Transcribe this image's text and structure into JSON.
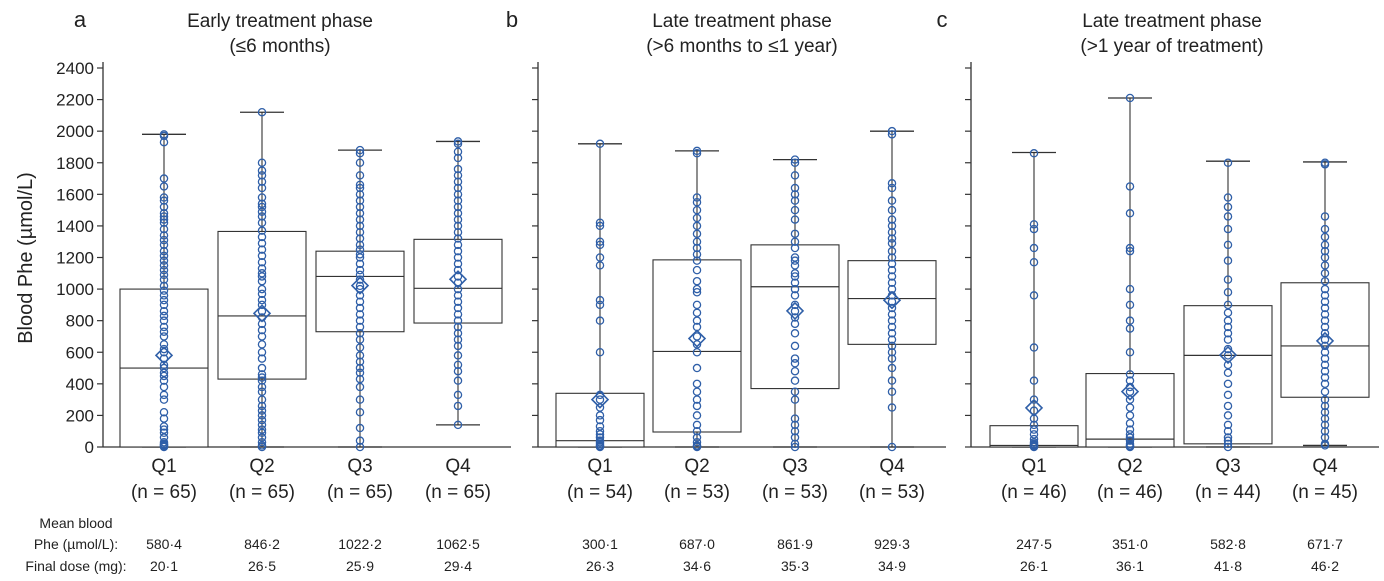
{
  "chart_data": [
    {
      "type": "box",
      "panel_letter": "a",
      "title": "Early treatment phase",
      "subtitle": "(≤6 months)",
      "ylabel": "Blood Phe (µmol/L)",
      "ylim": [
        0,
        2400
      ],
      "yticks": [
        0,
        200,
        400,
        600,
        800,
        1000,
        1200,
        1400,
        1600,
        1800,
        2000,
        2200,
        2400
      ],
      "categories": [
        "Q1",
        "Q2",
        "Q3",
        "Q4"
      ],
      "n_labels": [
        "(n = 65)",
        "(n = 65)",
        "(n = 65)",
        "(n = 65)"
      ],
      "boxes": [
        {
          "min": 0,
          "q1": 0,
          "median": 500,
          "q3": 1000,
          "max": 1980,
          "mean": 580.4
        },
        {
          "min": 0,
          "q1": 430,
          "median": 830,
          "q3": 1365,
          "max": 2120,
          "mean": 846.2
        },
        {
          "min": 0,
          "q1": 730,
          "median": 1080,
          "q3": 1240,
          "max": 1880,
          "mean": 1022.2
        },
        {
          "min": 140,
          "q1": 785,
          "median": 1005,
          "q3": 1315,
          "max": 1935,
          "mean": 1062.5
        }
      ],
      "points": [
        [
          0,
          5,
          10,
          15,
          20,
          30,
          60,
          90,
          110,
          130,
          180,
          220,
          300,
          330,
          380,
          420,
          450,
          470,
          500,
          520,
          560,
          600,
          620,
          650,
          700,
          730,
          760,
          800,
          830,
          860,
          900,
          930,
          960,
          990,
          1020,
          1060,
          1090,
          1120,
          1150,
          1180,
          1210,
          1240,
          1280,
          1310,
          1340,
          1380,
          1420,
          1440,
          1460,
          1480,
          1520,
          1560,
          1580,
          1650,
          1700,
          1930,
          1970,
          1980
        ],
        [
          0,
          10,
          30,
          60,
          90,
          110,
          140,
          170,
          200,
          230,
          260,
          300,
          350,
          380,
          420,
          440,
          460,
          500,
          560,
          600,
          650,
          700,
          740,
          780,
          820,
          860,
          900,
          930,
          970,
          1000,
          1050,
          1080,
          1100,
          1130,
          1170,
          1210,
          1250,
          1290,
          1330,
          1370,
          1420,
          1460,
          1490,
          1520,
          1540,
          1580,
          1640,
          1680,
          1720,
          1750,
          1800,
          2120
        ],
        [
          0,
          40,
          120,
          220,
          300,
          380,
          430,
          470,
          500,
          540,
          580,
          630,
          680,
          720,
          760,
          800,
          840,
          880,
          920,
          960,
          1000,
          1020,
          1060,
          1090,
          1120,
          1160,
          1200,
          1220,
          1250,
          1280,
          1320,
          1360,
          1400,
          1440,
          1480,
          1520,
          1560,
          1600,
          1640,
          1660,
          1720,
          1800,
          1860,
          1880
        ],
        [
          140,
          260,
          330,
          420,
          480,
          520,
          580,
          640,
          680,
          720,
          760,
          800,
          840,
          880,
          920,
          960,
          1000,
          1040,
          1080,
          1120,
          1160,
          1200,
          1240,
          1280,
          1320,
          1360,
          1400,
          1440,
          1480,
          1520,
          1560,
          1600,
          1640,
          1680,
          1720,
          1760,
          1830,
          1870,
          1920,
          1935
        ]
      ],
      "mean_label": "Mean blood",
      "mean_label_line2": "Phe (µmol/L):",
      "dose_label": "Final dose (mg):",
      "mean_values": [
        "580·4",
        "846·2",
        "1022·2",
        "1062·5"
      ],
      "dose_values": [
        "20·1",
        "26·5",
        "25·9",
        "29·4"
      ]
    },
    {
      "type": "box",
      "panel_letter": "b",
      "title": "Late treatment phase",
      "subtitle": "(>6 months to ≤1 year)",
      "ylim": [
        0,
        2400
      ],
      "categories": [
        "Q1",
        "Q2",
        "Q3",
        "Q4"
      ],
      "n_labels": [
        "(n = 54)",
        "(n = 53)",
        "(n = 53)",
        "(n = 53)"
      ],
      "boxes": [
        {
          "min": 0,
          "q1": 0,
          "median": 40,
          "q3": 340,
          "max": 1920,
          "mean": 300.1
        },
        {
          "min": 0,
          "q1": 95,
          "median": 605,
          "q3": 1185,
          "max": 1875,
          "mean": 687.0
        },
        {
          "min": 0,
          "q1": 370,
          "median": 1015,
          "q3": 1280,
          "max": 1820,
          "mean": 861.9
        },
        {
          "min": 0,
          "q1": 650,
          "median": 940,
          "q3": 1180,
          "max": 2000,
          "mean": 929.3
        }
      ],
      "points": [
        [
          0,
          5,
          10,
          20,
          30,
          40,
          60,
          80,
          100,
          130,
          170,
          200,
          250,
          300,
          330,
          600,
          800,
          900,
          930,
          1150,
          1200,
          1280,
          1300,
          1400,
          1420,
          1920
        ],
        [
          0,
          5,
          10,
          30,
          60,
          100,
          140,
          200,
          260,
          300,
          350,
          400,
          500,
          600,
          650,
          700,
          760,
          800,
          850,
          900,
          980,
          1000,
          1050,
          1120,
          1180,
          1220,
          1260,
          1300,
          1350,
          1400,
          1450,
          1500,
          1550,
          1580,
          1860,
          1875
        ],
        [
          0,
          20,
          60,
          100,
          140,
          180,
          300,
          350,
          420,
          480,
          530,
          560,
          640,
          720,
          780,
          820,
          860,
          900,
          960,
          1000,
          1040,
          1080,
          1100,
          1150,
          1180,
          1200,
          1260,
          1300,
          1350,
          1440,
          1500,
          1560,
          1600,
          1640,
          1720,
          1800,
          1820
        ],
        [
          0,
          250,
          350,
          420,
          500,
          560,
          600,
          640,
          680,
          720,
          760,
          800,
          840,
          880,
          920,
          960,
          1000,
          1040,
          1080,
          1120,
          1160,
          1200,
          1240,
          1290,
          1320,
          1360,
          1400,
          1440,
          1500,
          1560,
          1640,
          1670,
          1980,
          2000
        ]
      ],
      "mean_values": [
        "300·1",
        "687·0",
        "861·9",
        "929·3"
      ],
      "dose_values": [
        "26·3",
        "34·6",
        "35·3",
        "34·9"
      ]
    },
    {
      "type": "box",
      "panel_letter": "c",
      "title": "Late treatment phase",
      "subtitle": "(>1 year of treatment)",
      "ylim": [
        0,
        2400
      ],
      "categories": [
        "Q1",
        "Q2",
        "Q3",
        "Q4"
      ],
      "n_labels": [
        "(n = 46)",
        "(n = 46)",
        "(n = 44)",
        "(n = 45)"
      ],
      "boxes": [
        {
          "min": 0,
          "q1": 0,
          "median": 10,
          "q3": 135,
          "max": 1865,
          "mean": 247.5
        },
        {
          "min": 0,
          "q1": 0,
          "median": 50,
          "q3": 465,
          "max": 2210,
          "mean": 351.0
        },
        {
          "min": 0,
          "q1": 20,
          "median": 580,
          "q3": 895,
          "max": 1810,
          "mean": 582.8
        },
        {
          "min": 10,
          "q1": 315,
          "median": 640,
          "q3": 1040,
          "max": 1805,
          "mean": 671.7
        }
      ],
      "points": [
        [
          0,
          5,
          10,
          15,
          20,
          30,
          50,
          80,
          110,
          140,
          180,
          230,
          300,
          420,
          630,
          960,
          1170,
          1260,
          1380,
          1410,
          1860
        ],
        [
          0,
          5,
          10,
          20,
          40,
          60,
          80,
          110,
          150,
          200,
          250,
          300,
          350,
          380,
          420,
          460,
          600,
          750,
          800,
          900,
          1000,
          1240,
          1260,
          1480,
          1650,
          2210
        ],
        [
          0,
          20,
          40,
          60,
          100,
          140,
          200,
          260,
          330,
          400,
          470,
          520,
          580,
          620,
          680,
          720,
          760,
          800,
          850,
          900,
          980,
          1060,
          1180,
          1280,
          1380,
          1460,
          1520,
          1580,
          1800
        ],
        [
          10,
          20,
          60,
          100,
          140,
          180,
          220,
          260,
          300,
          350,
          400,
          440,
          480,
          520,
          560,
          600,
          640,
          680,
          720,
          760,
          800,
          840,
          880,
          920,
          960,
          1000,
          1050,
          1100,
          1150,
          1200,
          1240,
          1280,
          1330,
          1380,
          1460,
          1790,
          1800
        ]
      ],
      "mean_values": [
        "247·5",
        "351·0",
        "582·8",
        "671·7"
      ],
      "dose_values": [
        "26·1",
        "36·1",
        "41·8",
        "46·2"
      ]
    }
  ],
  "colors": {
    "points": "#2f5fa8",
    "box": "#333333",
    "text": "#222222"
  }
}
